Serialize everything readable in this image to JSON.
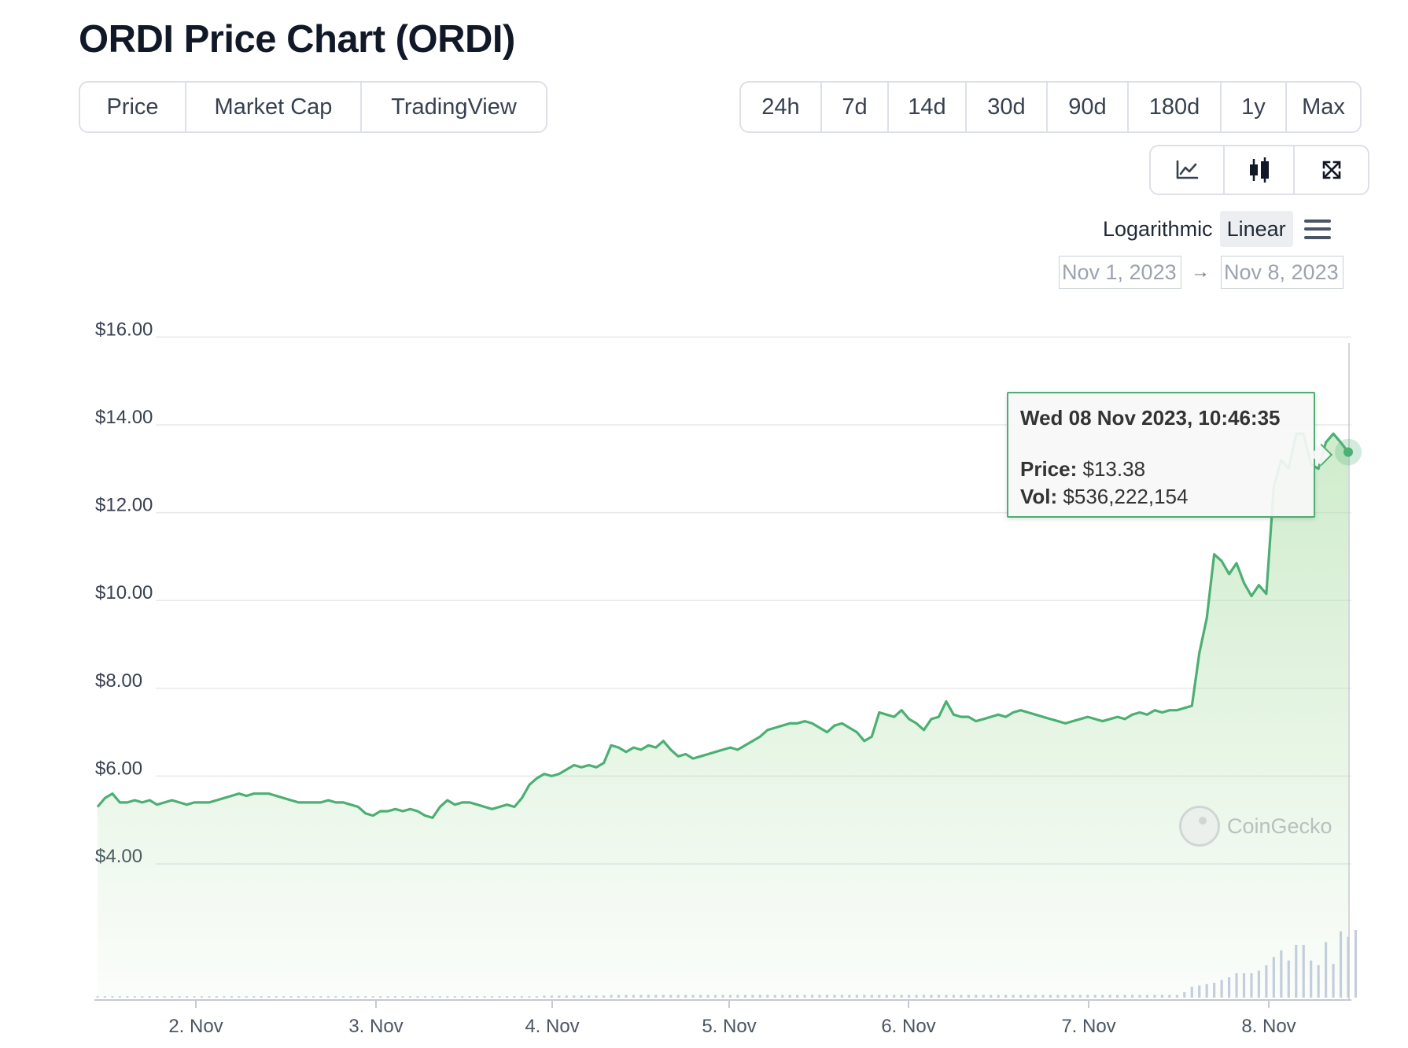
{
  "title": "ORDI Price Chart (ORDI)",
  "type_tabs": [
    {
      "label": "Price",
      "active": true
    },
    {
      "label": "Market Cap",
      "active": false
    },
    {
      "label": "TradingView",
      "active": false
    }
  ],
  "range_tabs": [
    {
      "label": "24h",
      "active": false
    },
    {
      "label": "7d",
      "active": true
    },
    {
      "label": "14d",
      "active": false
    },
    {
      "label": "30d",
      "active": false
    },
    {
      "label": "90d",
      "active": false
    },
    {
      "label": "180d",
      "active": false
    },
    {
      "label": "1y",
      "active": false
    },
    {
      "label": "Max",
      "active": false
    }
  ],
  "view_tabs": [
    {
      "icon": "line-chart-icon",
      "active": true
    },
    {
      "icon": "candlestick-icon",
      "active": false
    },
    {
      "icon": "fullscreen-icon",
      "active": false
    }
  ],
  "scale": {
    "logarithmic": "Logarithmic",
    "linear": "Linear",
    "active": "Linear"
  },
  "date_range": {
    "from": "Nov 1, 2023",
    "arrow": "→",
    "to": "Nov 8, 2023"
  },
  "tooltip": {
    "date": "Wed 08 Nov 2023, 10:46:35",
    "price_label": "Price:",
    "price": "$13.38",
    "vol_label": "Vol:",
    "vol": "$536,222,154"
  },
  "watermark": "CoinGecko",
  "colors": {
    "line": "#4caf73",
    "area": "#a8dca1",
    "volume": "#c5cde0",
    "grid": "#e6e8eb"
  },
  "chart_data": {
    "type": "area",
    "ylim": [
      4,
      16
    ],
    "yticks": [
      4,
      6,
      8,
      10,
      12,
      14,
      16
    ],
    "ytick_labels": [
      "$4.00",
      "$6.00",
      "$8.00",
      "$10.00",
      "$12.00",
      "$14.00",
      "$16.00"
    ],
    "xticks": [
      "2. Nov",
      "3. Nov",
      "4. Nov",
      "5. Nov",
      "6. Nov",
      "7. Nov",
      "8. Nov"
    ],
    "x_start": "2023-11-01T10:46",
    "x_end": "2023-11-08T10:46",
    "grid": true,
    "series": [
      {
        "values": [
          5.3,
          5.5,
          5.6,
          5.4,
          5.4,
          5.45,
          5.4,
          5.45,
          5.35,
          5.4,
          5.45,
          5.4,
          5.35,
          5.4,
          5.4,
          5.4,
          5.45,
          5.5,
          5.55,
          5.6,
          5.55,
          5.6,
          5.6,
          5.6,
          5.55,
          5.5,
          5.45,
          5.4,
          5.4,
          5.4,
          5.4,
          5.45,
          5.4,
          5.4,
          5.35,
          5.3,
          5.15,
          5.1,
          5.2,
          5.2,
          5.25,
          5.2,
          5.25,
          5.2,
          5.1,
          5.05,
          5.3,
          5.45,
          5.35,
          5.4,
          5.4,
          5.35,
          5.3,
          5.25,
          5.3,
          5.35,
          5.3,
          5.5,
          5.8,
          5.95,
          6.05,
          6.0,
          6.05,
          6.15,
          6.25,
          6.2,
          6.25,
          6.2,
          6.3,
          6.7,
          6.65,
          6.55,
          6.65,
          6.6,
          6.7,
          6.65,
          6.8,
          6.6,
          6.45,
          6.5,
          6.4,
          6.45,
          6.5,
          6.55,
          6.6,
          6.65,
          6.6,
          6.7,
          6.8,
          6.9,
          7.05,
          7.1,
          7.15,
          7.2,
          7.2,
          7.25,
          7.2,
          7.1,
          7.0,
          7.15,
          7.2,
          7.1,
          7.0,
          6.8,
          6.9,
          7.45,
          7.4,
          7.35,
          7.5,
          7.3,
          7.2,
          7.05,
          7.3,
          7.35,
          7.7,
          7.4,
          7.35,
          7.35,
          7.25,
          7.3,
          7.35,
          7.4,
          7.35,
          7.45,
          7.5,
          7.45,
          7.4,
          7.35,
          7.3,
          7.25,
          7.2,
          7.25,
          7.3,
          7.35,
          7.3,
          7.25,
          7.3,
          7.35,
          7.3,
          7.4,
          7.45,
          7.4,
          7.5,
          7.45,
          7.5,
          7.5,
          7.55,
          7.6,
          8.8,
          9.6,
          11.05,
          10.9,
          10.6,
          10.85,
          10.4,
          10.1,
          10.35,
          10.15,
          12.6,
          13.2,
          13.0,
          13.8,
          13.8,
          13.1,
          13.0,
          13.6,
          13.8,
          13.6,
          13.38
        ]
      }
    ],
    "volume_relative": [
      0.02,
      0.02,
      0.02,
      0.02,
      0.02,
      0.02,
      0.02,
      0.02,
      0.02,
      0.02,
      0.02,
      0.02,
      0.02,
      0.02,
      0.02,
      0.02,
      0.02,
      0.02,
      0.02,
      0.02,
      0.02,
      0.02,
      0.02,
      0.02,
      0.02,
      0.02,
      0.02,
      0.02,
      0.02,
      0.02,
      0.02,
      0.02,
      0.02,
      0.02,
      0.02,
      0.02,
      0.02,
      0.02,
      0.02,
      0.02,
      0.02,
      0.02,
      0.02,
      0.02,
      0.02,
      0.02,
      0.02,
      0.02,
      0.02,
      0.02,
      0.02,
      0.02,
      0.02,
      0.02,
      0.02,
      0.02,
      0.02,
      0.02,
      0.02,
      0.02,
      0.03,
      0.03,
      0.03,
      0.03,
      0.03,
      0.03,
      0.03,
      0.03,
      0.03,
      0.04,
      0.04,
      0.04,
      0.04,
      0.04,
      0.04,
      0.04,
      0.04,
      0.04,
      0.04,
      0.04,
      0.04,
      0.04,
      0.04,
      0.04,
      0.04,
      0.04,
      0.04,
      0.04,
      0.04,
      0.04,
      0.04,
      0.04,
      0.04,
      0.04,
      0.04,
      0.04,
      0.04,
      0.04,
      0.04,
      0.04,
      0.04,
      0.04,
      0.04,
      0.04,
      0.04,
      0.04,
      0.04,
      0.04,
      0.04,
      0.04,
      0.04,
      0.04,
      0.04,
      0.04,
      0.04,
      0.04,
      0.04,
      0.04,
      0.04,
      0.04,
      0.04,
      0.04,
      0.04,
      0.04,
      0.04,
      0.04,
      0.04,
      0.04,
      0.04,
      0.04,
      0.04,
      0.04,
      0.04,
      0.04,
      0.04,
      0.04,
      0.04,
      0.04,
      0.04,
      0.04,
      0.04,
      0.04,
      0.04,
      0.04,
      0.04,
      0.04,
      0.08,
      0.16,
      0.18,
      0.2,
      0.22,
      0.26,
      0.3,
      0.36,
      0.36,
      0.36,
      0.4,
      0.48,
      0.6,
      0.7,
      0.55,
      0.78,
      0.78,
      0.55,
      0.48,
      0.82,
      0.5,
      0.98,
      0.9,
      1.0
    ]
  }
}
